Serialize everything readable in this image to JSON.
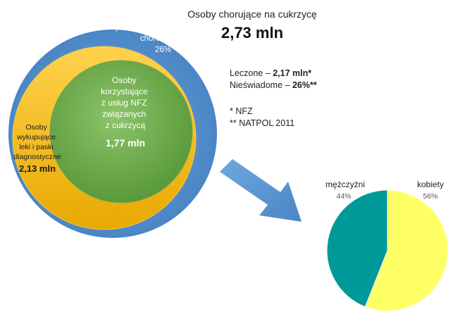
{
  "header": {
    "title": "Osoby chorujące na cukrzycę",
    "total": "2,73 mln"
  },
  "circles": {
    "outer": {
      "label_lines": [
        "osoby nieświadome",
        "choroby"
      ],
      "percent": "26%",
      "color": "#5b9bd5"
    },
    "middle": {
      "label_lines": [
        "Osoby",
        "wykupujące",
        "leki i paski",
        "diagnostyczne"
      ],
      "value": "2,13 mln",
      "color": "#f4b400"
    },
    "inner": {
      "label_lines": [
        "Osoby",
        "korzystające",
        "z usług NFZ",
        "związanych",
        "z cukrzycą"
      ],
      "value": "1,77 mln",
      "color": "#70ad47"
    }
  },
  "summary": {
    "treated_label": "Leczone",
    "treated_value": "2,17 mln*",
    "unaware_label": "Nieświadome",
    "unaware_value": "26%**",
    "separator": "–"
  },
  "footnotes": [
    "* NFZ",
    "** NATPOL 2011"
  ],
  "arrow": {
    "color": "#5b9bd5"
  },
  "chart_data": {
    "type": "pie",
    "title": "",
    "slices": [
      {
        "label": "kobiety",
        "value": 56,
        "value_label": "56%",
        "color": "#ffff66"
      },
      {
        "label": "mężczyźni",
        "value": 44,
        "value_label": "44%",
        "color": "#009999"
      }
    ],
    "legend": "labels-outside"
  }
}
